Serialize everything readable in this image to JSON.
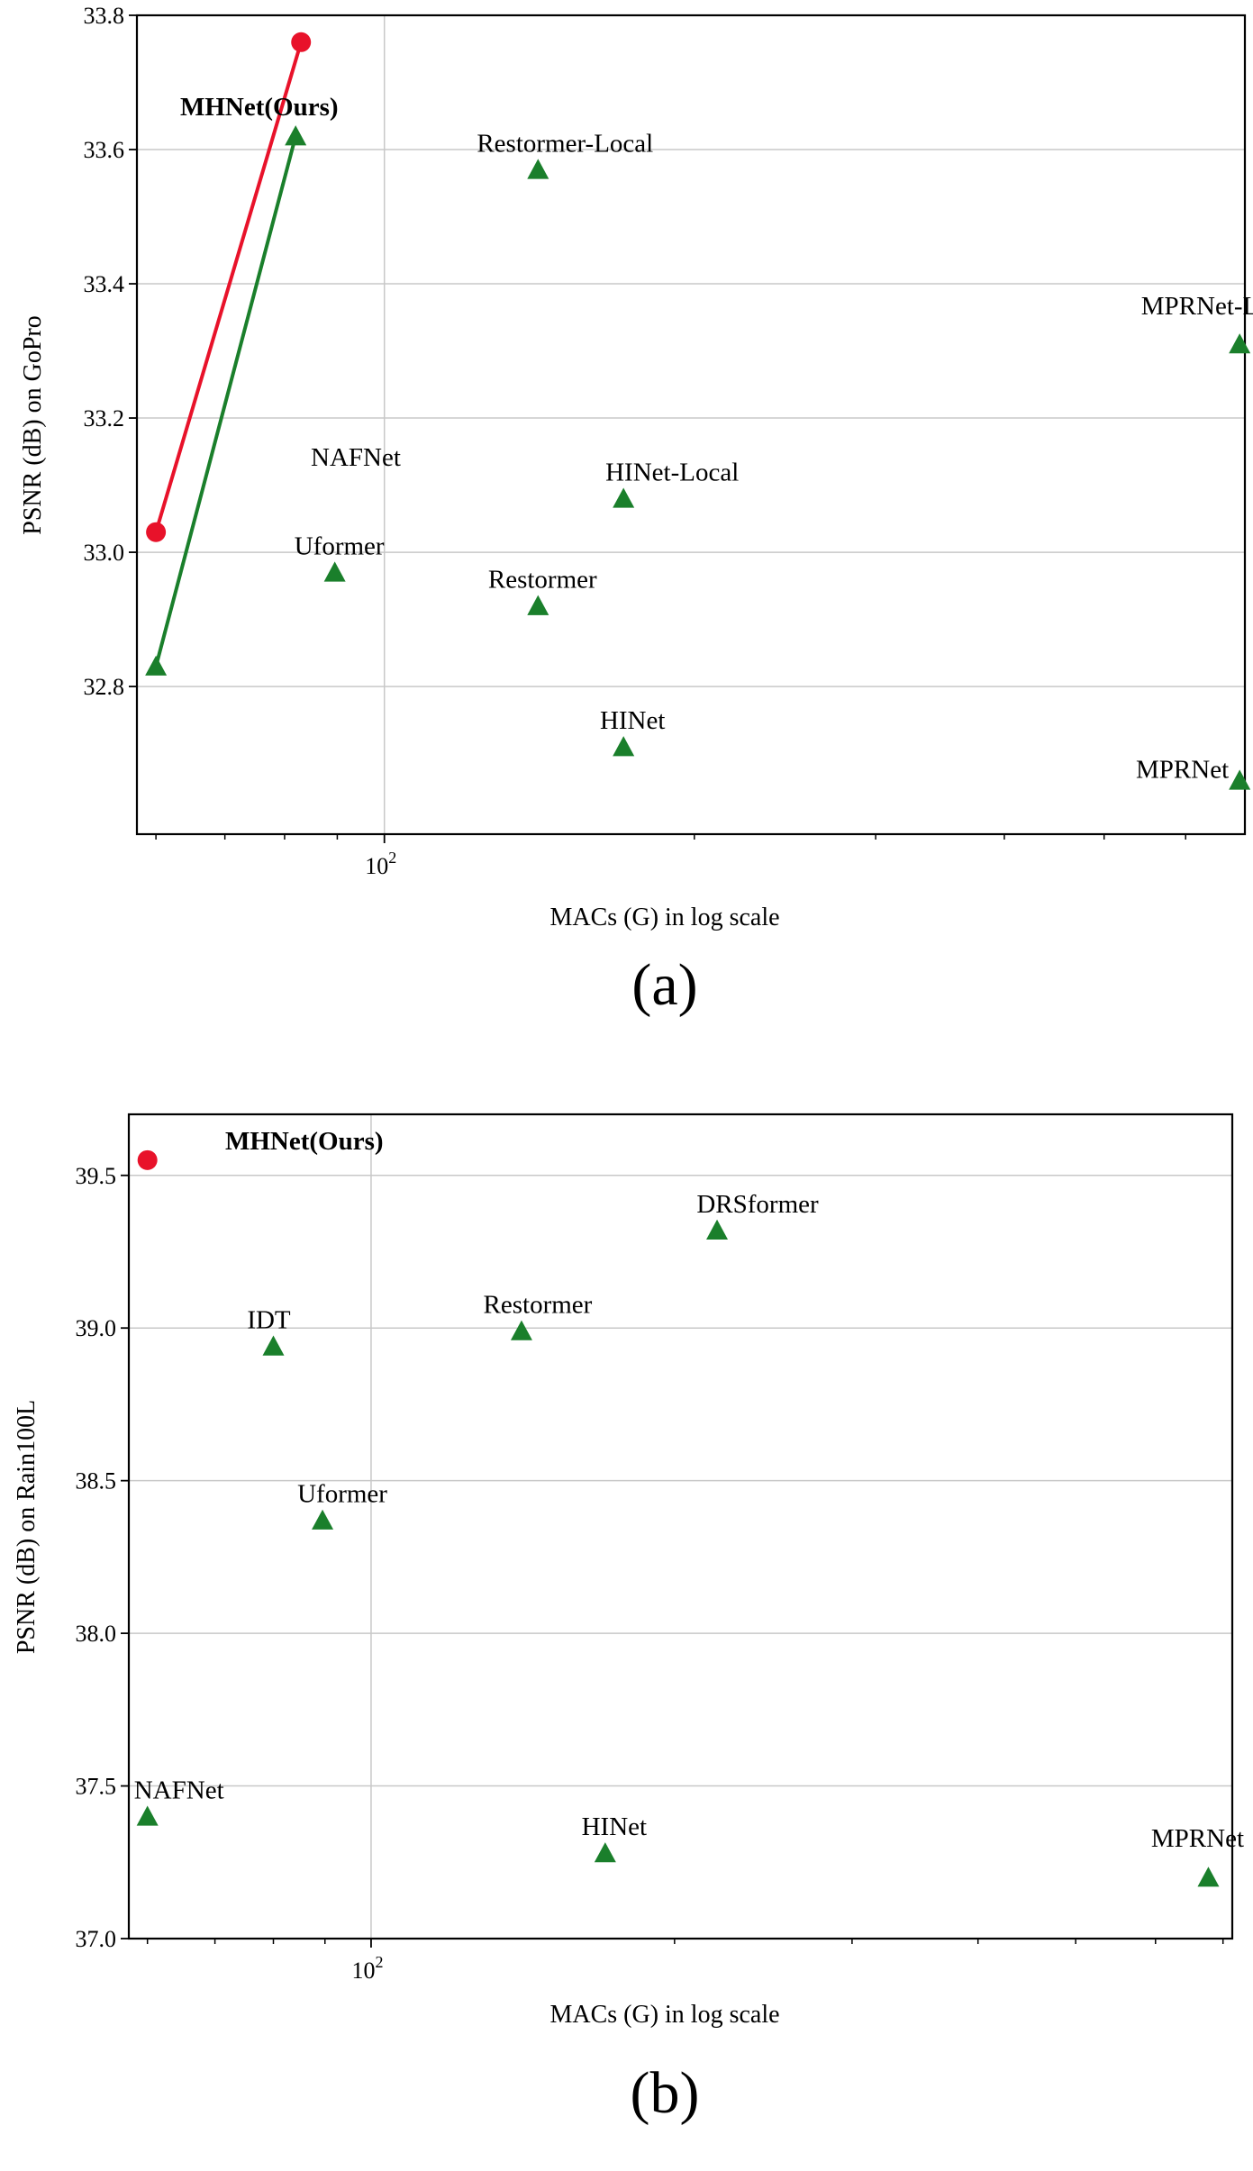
{
  "chart_data": [
    {
      "type": "scatter",
      "caption": "(a)",
      "xlabel": "MACs (G) in log scale",
      "ylabel": "PSNR (dB) on GoPro",
      "x_scale": "log",
      "xlim": [
        57.5,
        685
      ],
      "ylim": [
        32.58,
        33.8
      ],
      "x_ticks": [
        {
          "value": 100,
          "base": "10",
          "exp": "2"
        }
      ],
      "y_ticks": [
        {
          "value": 32.8,
          "label": "32.8"
        },
        {
          "value": 33.0,
          "label": "33.0"
        },
        {
          "value": 33.2,
          "label": "33.2"
        },
        {
          "value": 33.4,
          "label": "33.4"
        },
        {
          "value": 33.6,
          "label": "33.6"
        },
        {
          "value": 33.8,
          "label": "33.8"
        }
      ],
      "grid": true,
      "colors": {
        "ours": "#e8122a",
        "others": "#1a7f2b"
      },
      "lines": [
        {
          "name": "MHNet(Ours)",
          "color": "#e8122a",
          "points": [
            [
              60,
              33.03
            ],
            [
              83,
              33.76
            ]
          ]
        },
        {
          "name": "NAFNet",
          "color": "#1a7f2b",
          "points": [
            [
              60,
              32.83
            ],
            [
              82,
              33.62
            ]
          ]
        }
      ],
      "points": [
        {
          "id": "mhnet-small",
          "x": 60,
          "y": 33.03,
          "marker": "circle",
          "color": "#e8122a",
          "label": ""
        },
        {
          "id": "mhnet-large",
          "x": 83,
          "y": 33.76,
          "marker": "circle",
          "color": "#e8122a",
          "label": ""
        },
        {
          "id": "nafnet-small",
          "x": 60,
          "y": 32.83,
          "marker": "triangle",
          "color": "#1a7f2b",
          "label": ""
        },
        {
          "id": "nafnet-large",
          "x": 82,
          "y": 33.62,
          "marker": "triangle",
          "color": "#1a7f2b",
          "label": ""
        },
        {
          "id": "uformer",
          "x": 89.5,
          "y": 32.97,
          "marker": "triangle",
          "color": "#1a7f2b",
          "label": "Uformer"
        },
        {
          "id": "restormer-local",
          "x": 141,
          "y": 33.57,
          "marker": "triangle",
          "color": "#1a7f2b",
          "label": "Restormer-Local"
        },
        {
          "id": "restormer",
          "x": 141,
          "y": 32.92,
          "marker": "triangle",
          "color": "#1a7f2b",
          "label": "Restormer"
        },
        {
          "id": "hinet-local",
          "x": 170.7,
          "y": 33.08,
          "marker": "triangle",
          "color": "#1a7f2b",
          "label": "HINet-Local"
        },
        {
          "id": "hinet",
          "x": 170.7,
          "y": 32.71,
          "marker": "triangle",
          "color": "#1a7f2b",
          "label": "HINet"
        },
        {
          "id": "mprnet-local",
          "x": 677,
          "y": 33.31,
          "marker": "triangle",
          "color": "#1a7f2b",
          "label": "MPRNet-Local"
        },
        {
          "id": "mprnet",
          "x": 677,
          "y": 32.66,
          "marker": "triangle",
          "color": "#1a7f2b",
          "label": "MPRNet"
        }
      ],
      "annotations": [
        {
          "id": "mhnet-label",
          "text": "MHNet(Ours)",
          "bold": true
        },
        {
          "id": "nafnet-label",
          "text": "NAFNet",
          "bold": false
        }
      ]
    },
    {
      "type": "scatter",
      "caption": "(b)",
      "xlabel": "MACs (G) in log scale",
      "ylabel": "PSNR (dB) on Rain100L",
      "x_scale": "log",
      "xlim": [
        57.5,
        715
      ],
      "ylim": [
        37.0,
        39.7
      ],
      "x_ticks": [
        {
          "value": 100,
          "base": "10",
          "exp": "2"
        }
      ],
      "y_ticks": [
        {
          "value": 37.0,
          "label": "37.0"
        },
        {
          "value": 37.5,
          "label": "37.5"
        },
        {
          "value": 38.0,
          "label": "38.0"
        },
        {
          "value": 38.5,
          "label": "38.5"
        },
        {
          "value": 39.0,
          "label": "39.0"
        },
        {
          "value": 39.5,
          "label": "39.5"
        }
      ],
      "grid": true,
      "colors": {
        "ours": "#e8122a",
        "others": "#1a7f2b"
      },
      "lines": [],
      "points": [
        {
          "id": "mhnet",
          "x": 60,
          "y": 39.55,
          "marker": "circle",
          "color": "#e8122a",
          "label": ""
        },
        {
          "id": "nafnet",
          "x": 60,
          "y": 37.4,
          "marker": "triangle",
          "color": "#1a7f2b",
          "label": "NAFNet"
        },
        {
          "id": "idt",
          "x": 80,
          "y": 38.94,
          "marker": "triangle",
          "color": "#1a7f2b",
          "label": "IDT"
        },
        {
          "id": "uformer",
          "x": 89.5,
          "y": 38.37,
          "marker": "triangle",
          "color": "#1a7f2b",
          "label": "Uformer"
        },
        {
          "id": "restormer",
          "x": 141,
          "y": 38.99,
          "marker": "triangle",
          "color": "#1a7f2b",
          "label": "Restormer"
        },
        {
          "id": "drsformer",
          "x": 220.4,
          "y": 39.32,
          "marker": "triangle",
          "color": "#1a7f2b",
          "label": "DRSformer"
        },
        {
          "id": "hinet",
          "x": 170.7,
          "y": 37.28,
          "marker": "triangle",
          "color": "#1a7f2b",
          "label": "HINet"
        },
        {
          "id": "mprnet",
          "x": 677,
          "y": 37.2,
          "marker": "triangle",
          "color": "#1a7f2b",
          "label": "MPRNet"
        }
      ],
      "annotations": [
        {
          "id": "mhnet-label",
          "text": "MHNet(Ours)",
          "bold": true
        }
      ]
    }
  ]
}
